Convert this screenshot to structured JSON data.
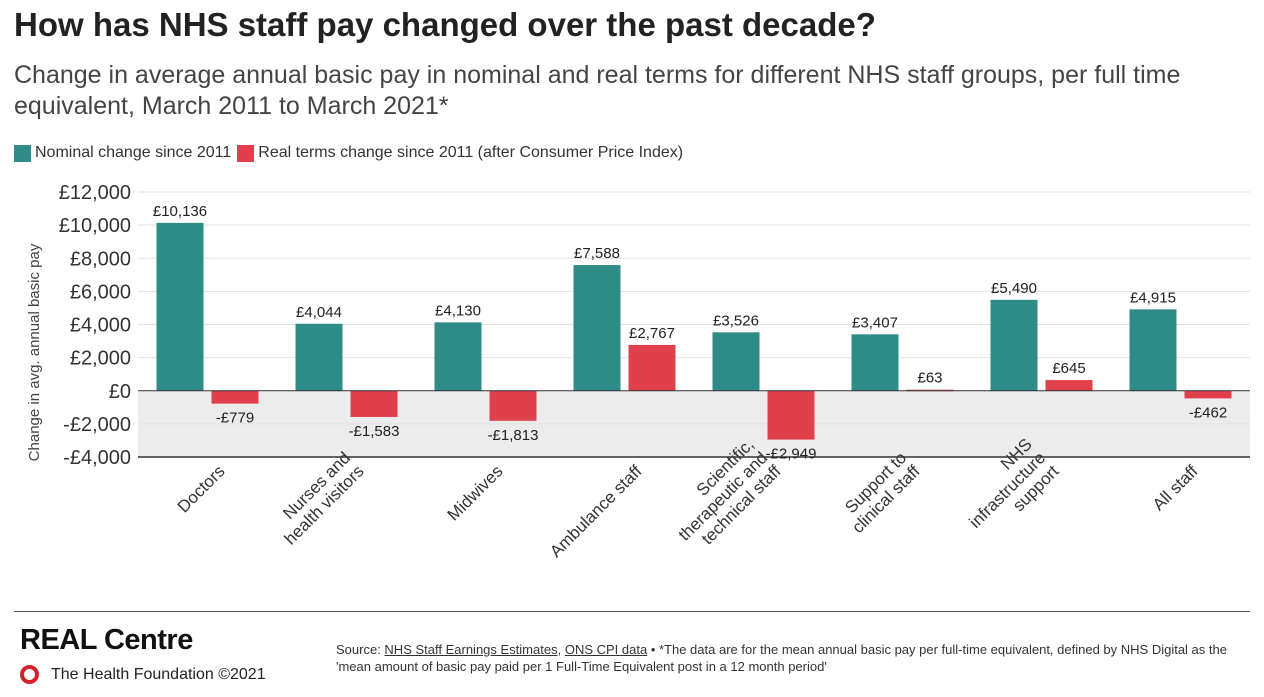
{
  "title": "How has NHS staff pay changed over the past decade?",
  "subtitle": "Change in average annual basic pay in nominal and real terms for different NHS staff groups, per full time equivalent, March 2011 to March 2021*",
  "footer": {
    "brand": "REAL Centre",
    "org": "The Health Foundation ©2021",
    "source_prefix": "Source: ",
    "source_link1": "NHS Staff Earnings Estimates",
    "source_sep": ", ",
    "source_link2": "ONS CPI data",
    "source_note": " • *The data are for the mean annual basic pay per full-time equivalent, defined by NHS Digital as the 'mean amount of basic pay paid per 1 Full-Time Equivalent post in a 12 month period'"
  },
  "colors": {
    "nominal": "#2e8b88",
    "real": "#e0404b",
    "negative_band": "#ececec",
    "grid": "#e2e2e2"
  },
  "chart_data": {
    "type": "bar",
    "title": "How has NHS staff pay changed over the past decade?",
    "subtitle": "Change in average annual basic pay in nominal and real terms for different NHS staff groups, per full time equivalent, March 2011 to March 2021*",
    "ylabel": "Change in avg. annual basic pay",
    "ylim": [
      -4000,
      12000
    ],
    "yticks": [
      12000,
      10000,
      8000,
      6000,
      4000,
      2000,
      0,
      -2000,
      -4000
    ],
    "ytick_labels": [
      "£12,000",
      "£10,000",
      "£8,000",
      "£6,000",
      "£4,000",
      "£2,000",
      "£0",
      "-£2,000",
      "-£4,000"
    ],
    "legend_position": "top-left",
    "grid": true,
    "categories": [
      [
        "Doctors"
      ],
      [
        "Nurses and",
        "health visitors"
      ],
      [
        "Midwives"
      ],
      [
        "Ambulance staff"
      ],
      [
        "Scientific,",
        "therapeutic and",
        "technical staff"
      ],
      [
        "Support to",
        "clinical staff"
      ],
      [
        "NHS",
        "infrastructure",
        "support"
      ],
      [
        "All staff"
      ]
    ],
    "series": [
      {
        "name": "Nominal change since 2011",
        "values": [
          10136,
          4044,
          4130,
          7588,
          3526,
          3407,
          5490,
          4915
        ],
        "labels": [
          "£10,136",
          "£4,044",
          "£4,130",
          "£7,588",
          "£3,526",
          "£3,407",
          "£5,490",
          "£4,915"
        ]
      },
      {
        "name": "Real terms change since 2011 (after Consumer Price Index)",
        "values": [
          -779,
          -1583,
          -1813,
          2767,
          -2949,
          63,
          645,
          -462
        ],
        "labels": [
          "-£779",
          "-£1,583",
          "-£1,813",
          "£2,767",
          "-£2,949",
          "£63",
          "£645",
          "-£462"
        ]
      }
    ]
  }
}
